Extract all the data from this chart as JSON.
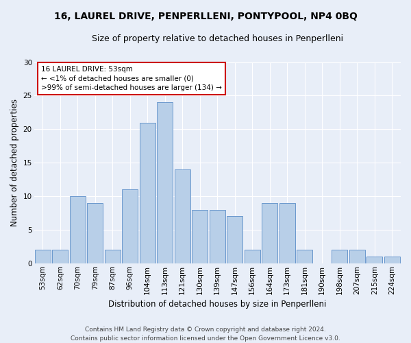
{
  "title": "16, LAUREL DRIVE, PENPERLLENI, PONTYPOOL, NP4 0BQ",
  "subtitle": "Size of property relative to detached houses in Penperlleni",
  "xlabel": "Distribution of detached houses by size in Penperlleni",
  "ylabel": "Number of detached properties",
  "categories": [
    "53sqm",
    "62sqm",
    "70sqm",
    "79sqm",
    "87sqm",
    "96sqm",
    "104sqm",
    "113sqm",
    "121sqm",
    "130sqm",
    "139sqm",
    "147sqm",
    "156sqm",
    "164sqm",
    "173sqm",
    "181sqm",
    "190sqm",
    "198sqm",
    "207sqm",
    "215sqm",
    "224sqm"
  ],
  "values": [
    2,
    2,
    10,
    9,
    2,
    11,
    21,
    24,
    14,
    8,
    8,
    7,
    2,
    9,
    9,
    2,
    0,
    2,
    2,
    1,
    1
  ],
  "bar_color": "#b8cfe8",
  "bar_edge_color": "#5b8dc8",
  "annotation_title": "16 LAUREL DRIVE: 53sqm",
  "annotation_line1": "← <1% of detached houses are smaller (0)",
  "annotation_line2": ">99% of semi-detached houses are larger (134) →",
  "annotation_box_color": "#ffffff",
  "annotation_box_edge_color": "#cc0000",
  "ylim": [
    0,
    30
  ],
  "yticks": [
    0,
    5,
    10,
    15,
    20,
    25,
    30
  ],
  "background_color": "#e8eef8",
  "plot_bg_color": "#e8eef8",
  "footer1": "Contains HM Land Registry data © Crown copyright and database right 2024.",
  "footer2": "Contains public sector information licensed under the Open Government Licence v3.0.",
  "title_fontsize": 10,
  "subtitle_fontsize": 9,
  "xlabel_fontsize": 8.5,
  "ylabel_fontsize": 8.5,
  "tick_fontsize": 7.5,
  "annotation_fontsize": 7.5,
  "footer_fontsize": 6.5
}
